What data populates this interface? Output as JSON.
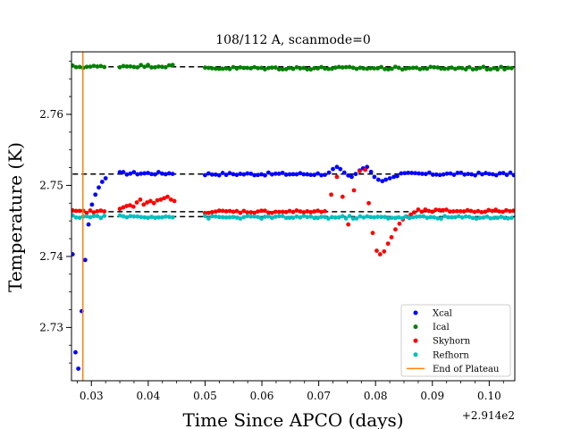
{
  "chart_data": {
    "type": "scatter",
    "title": "108/112 A, scanmode=0",
    "xlabel": "Time Since APCO (days)",
    "ylabel": "Temperature (K)",
    "x_offset_label": "+2.914e2",
    "xlim": [
      0.0265,
      0.1045
    ],
    "ylim": [
      2.7225,
      2.7688
    ],
    "xticks": [
      0.03,
      0.04,
      0.05,
      0.06,
      0.07,
      0.08,
      0.09,
      0.1
    ],
    "xtick_labels": [
      "0.03",
      "0.04",
      "0.05",
      "0.06",
      "0.07",
      "0.08",
      "0.09",
      "0.10"
    ],
    "yticks": [
      2.73,
      2.74,
      2.75,
      2.76
    ],
    "ytick_labels": [
      "2.73",
      "2.74",
      "2.75",
      "2.76"
    ],
    "grid": false,
    "legend_position": "lower-right",
    "series": [
      {
        "name": "Xcal",
        "color": "#0000ff",
        "segments": [
          {
            "points": [
              [
                0.0267,
                2.7403
              ],
              [
                0.0272,
                2.7265
              ],
              [
                0.0277,
                2.7242
              ],
              [
                0.0283,
                2.7323
              ],
              [
                0.0289,
                2.7395
              ],
              [
                0.0295,
                2.7445
              ],
              [
                0.0301,
                2.7473
              ],
              [
                0.0307,
                2.7487
              ],
              [
                0.0313,
                2.7497
              ],
              [
                0.0319,
                2.7505
              ],
              [
                0.0325,
                2.751
              ]
            ]
          },
          {
            "x_start": 0.035,
            "x_end": 0.0447,
            "y": 2.7517,
            "jitter": 0.0002
          },
          {
            "x_start": 0.05,
            "x_end": 0.0715,
            "y": 2.7516,
            "jitter": 0.0002
          },
          {
            "points": [
              [
                0.0718,
                2.7518
              ],
              [
                0.0725,
                2.7523
              ],
              [
                0.0732,
                2.7526
              ],
              [
                0.0738,
                2.7523
              ],
              [
                0.0745,
                2.7518
              ],
              [
                0.0752,
                2.7514
              ],
              [
                0.0758,
                2.7512
              ],
              [
                0.0765,
                2.7516
              ],
              [
                0.0772,
                2.7521
              ],
              [
                0.0778,
                2.7524
              ],
              [
                0.0785,
                2.7526
              ],
              [
                0.0792,
                2.7519
              ],
              [
                0.0798,
                2.7512
              ],
              [
                0.0805,
                2.7508
              ],
              [
                0.0812,
                2.7506
              ],
              [
                0.0818,
                2.7508
              ],
              [
                0.0825,
                2.751
              ],
              [
                0.0832,
                2.7512
              ],
              [
                0.0838,
                2.7513
              ]
            ]
          },
          {
            "x_start": 0.0845,
            "x_end": 0.1045,
            "y": 2.7516,
            "jitter": 0.0002
          }
        ]
      },
      {
        "name": "Ical",
        "color": "#008000",
        "segments": [
          {
            "x_start": 0.0267,
            "x_end": 0.0325,
            "y": 2.7667,
            "jitter": 0.0002
          },
          {
            "x_start": 0.035,
            "x_end": 0.0447,
            "y": 2.7668,
            "jitter": 0.0002
          },
          {
            "x_start": 0.05,
            "x_end": 0.1045,
            "y": 2.7665,
            "jitter": 0.0002
          }
        ]
      },
      {
        "name": "Skyhorn",
        "color": "#ff0000",
        "segments": [
          {
            "x_start": 0.0267,
            "x_end": 0.0325,
            "y": 2.7463,
            "jitter": 0.0002
          },
          {
            "points": [
              [
                0.035,
                2.7467
              ],
              [
                0.0356,
                2.7469
              ],
              [
                0.0362,
                2.7471
              ],
              [
                0.0368,
                2.7472
              ],
              [
                0.0374,
                2.747
              ],
              [
                0.038,
                2.7476
              ],
              [
                0.0386,
                2.748
              ],
              [
                0.0392,
                2.7473
              ],
              [
                0.0398,
                2.7476
              ],
              [
                0.0404,
                2.7478
              ],
              [
                0.041,
                2.7475
              ],
              [
                0.0416,
                2.7479
              ],
              [
                0.0422,
                2.748
              ],
              [
                0.0428,
                2.7482
              ],
              [
                0.0434,
                2.7484
              ],
              [
                0.044,
                2.748
              ],
              [
                0.0446,
                2.7478
              ]
            ]
          },
          {
            "x_start": 0.05,
            "x_end": 0.0715,
            "y": 2.7463,
            "jitter": 0.0002
          },
          {
            "points": [
              [
                0.0722,
                2.7487
              ],
              [
                0.0732,
                2.7512
              ],
              [
                0.0742,
                2.7484
              ],
              [
                0.0752,
                2.7445
              ],
              [
                0.0762,
                2.7493
              ],
              [
                0.0772,
                2.752
              ],
              [
                0.0782,
                2.7522
              ],
              [
                0.0788,
                2.7475
              ],
              [
                0.0795,
                2.7433
              ],
              [
                0.0802,
                2.7408
              ],
              [
                0.0808,
                2.7403
              ],
              [
                0.0815,
                2.7407
              ],
              [
                0.0822,
                2.7418
              ],
              [
                0.0828,
                2.7427
              ],
              [
                0.0835,
                2.7438
              ],
              [
                0.0842,
                2.7446
              ],
              [
                0.0848,
                2.7452
              ],
              [
                0.0855,
                2.7456
              ],
              [
                0.0862,
                2.7459
              ],
              [
                0.0868,
                2.7462
              ]
            ]
          },
          {
            "x_start": 0.0875,
            "x_end": 0.1045,
            "y": 2.7464,
            "jitter": 0.0002
          }
        ]
      },
      {
        "name": "Refhorn",
        "color": "#00bfbf",
        "segments": [
          {
            "x_start": 0.0267,
            "x_end": 0.0325,
            "y": 2.7456,
            "jitter": 0.0002
          },
          {
            "x_start": 0.035,
            "x_end": 0.0447,
            "y": 2.7456,
            "jitter": 0.0002
          },
          {
            "x_start": 0.05,
            "x_end": 0.1045,
            "y": 2.7455,
            "jitter": 0.0002
          }
        ]
      }
    ],
    "reference_lines": [
      {
        "y": 2.7667,
        "x_start": 0.0267,
        "x_end": 0.1045
      },
      {
        "y": 2.7516,
        "x_start": 0.0267,
        "x_end": 0.1045
      },
      {
        "y": 2.7463,
        "x_start": 0.0267,
        "x_end": 0.1045
      },
      {
        "y": 2.7456,
        "x_start": 0.0267,
        "x_end": 0.1045
      }
    ],
    "vertical_lines": [
      {
        "name": "End of Plateau",
        "x": 0.0285,
        "color": "#ff7f0e"
      }
    ],
    "legend": [
      {
        "label": "Xcal",
        "color": "#0000ff",
        "kind": "marker"
      },
      {
        "label": "Ical",
        "color": "#008000",
        "kind": "marker"
      },
      {
        "label": "Skyhorn",
        "color": "#ff0000",
        "kind": "marker"
      },
      {
        "label": "Refhorn",
        "color": "#00bfbf",
        "kind": "marker"
      },
      {
        "label": "End of Plateau",
        "color": "#ff7f0e",
        "kind": "line"
      }
    ]
  }
}
